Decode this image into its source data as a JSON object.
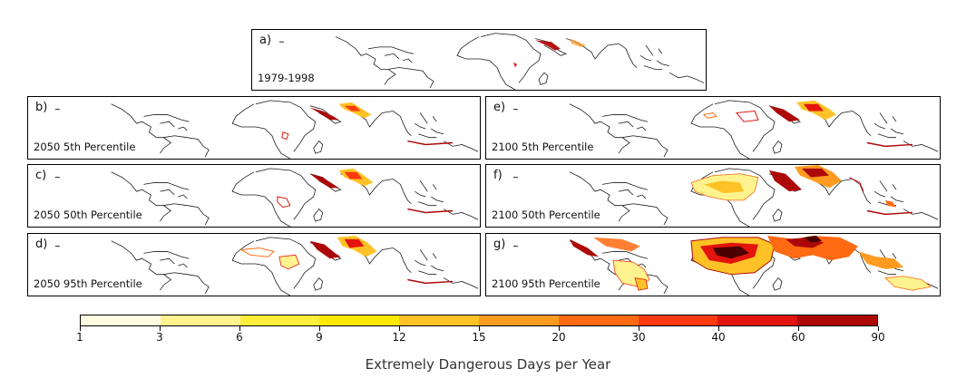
{
  "panels": [
    {
      "id": "a",
      "letter": "a)",
      "label": "1979-1998",
      "level": 0
    },
    {
      "id": "b",
      "letter": "b)",
      "label": "2050 5th Percentile",
      "level": 1
    },
    {
      "id": "c",
      "letter": "c)",
      "label": "2050 50th Percentile",
      "level": 1
    },
    {
      "id": "d",
      "letter": "d)",
      "label": "2050 95th Percentile",
      "level": 2
    },
    {
      "id": "e",
      "letter": "e)",
      "label": "2100 5th Percentile",
      "level": 2
    },
    {
      "id": "f",
      "letter": "f)",
      "label": "2100 50th Percentile",
      "level": 3
    },
    {
      "id": "g",
      "letter": "g)",
      "label": "2100 95th Percentile",
      "level": 4
    }
  ],
  "colorbar": {
    "title": "Extremely Dangerous Days per Year",
    "ticks": [
      "1",
      "3",
      "6",
      "9",
      "12",
      "15",
      "20",
      "30",
      "40",
      "60",
      "90"
    ],
    "colors": [
      "#fffbe0",
      "#fff38f",
      "#ffef3a",
      "#ffe900",
      "#ffc226",
      "#ff9b1f",
      "#ff6a12",
      "#ff3a0f",
      "#e3130d",
      "#ad0808",
      "#4a0000"
    ]
  }
}
